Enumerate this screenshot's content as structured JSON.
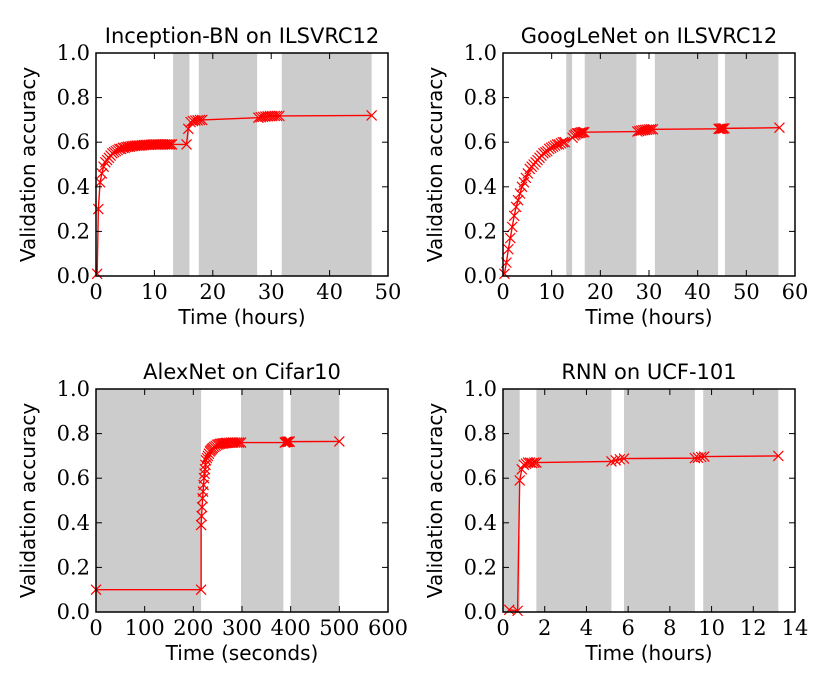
{
  "colors": {
    "line": "#ff0000",
    "shade": "#cccccc",
    "axis": "#000000",
    "background": "#ffffff"
  },
  "chart_data": [
    {
      "type": "line",
      "title": "Inception-BN on ILSVRC12",
      "xlabel": "Time (hours)",
      "ylabel": "Validation accuracy",
      "xlim": [
        0,
        50
      ],
      "ylim": [
        0,
        1.0
      ],
      "xticks": [
        "0",
        "10",
        "20",
        "30",
        "40",
        "50"
      ],
      "yticks": [
        "0.0",
        "0.2",
        "0.4",
        "0.6",
        "0.8",
        "1.0"
      ],
      "shaded_regions": [
        [
          13.2,
          16.0
        ],
        [
          17.6,
          27.6
        ],
        [
          31.8,
          47.2
        ]
      ],
      "series": [
        {
          "name": "validation accuracy",
          "x": [
            0.2,
            0.4,
            0.7,
            1.0,
            1.3,
            1.6,
            1.9,
            2.2,
            2.5,
            2.8,
            3.1,
            3.4,
            3.7,
            4.0,
            4.3,
            4.6,
            4.9,
            5.2,
            5.5,
            5.8,
            6.1,
            6.4,
            6.7,
            7.0,
            7.3,
            7.6,
            7.9,
            8.2,
            8.5,
            8.8,
            9.1,
            9.4,
            9.7,
            10.0,
            10.3,
            10.6,
            10.9,
            11.2,
            11.5,
            11.8,
            12.1,
            12.4,
            12.7,
            13.0,
            15.5,
            15.8,
            16.2,
            16.6,
            17.0,
            17.4,
            17.8,
            18.2,
            27.8,
            28.2,
            28.6,
            29.0,
            29.4,
            29.8,
            30.2,
            30.6,
            31.0,
            31.4,
            47.2
          ],
          "y": [
            0.01,
            0.3,
            0.42,
            0.46,
            0.49,
            0.51,
            0.52,
            0.53,
            0.54,
            0.55,
            0.555,
            0.56,
            0.565,
            0.57,
            0.57,
            0.575,
            0.575,
            0.578,
            0.58,
            0.58,
            0.582,
            0.583,
            0.584,
            0.585,
            0.585,
            0.585,
            0.586,
            0.587,
            0.588,
            0.588,
            0.588,
            0.589,
            0.59,
            0.59,
            0.59,
            0.59,
            0.59,
            0.59,
            0.59,
            0.59,
            0.59,
            0.59,
            0.59,
            0.59,
            0.59,
            0.66,
            0.69,
            0.695,
            0.697,
            0.698,
            0.7,
            0.7,
            0.71,
            0.712,
            0.714,
            0.715,
            0.716,
            0.717,
            0.717,
            0.718,
            0.718,
            0.718,
            0.72
          ]
        }
      ]
    },
    {
      "type": "line",
      "title": "GoogLeNet on ILSVRC12",
      "xlabel": "Time (hours)",
      "ylabel": "Validation accuracy",
      "xlim": [
        0,
        60
      ],
      "ylim": [
        0,
        1.0
      ],
      "xticks": [
        "0",
        "10",
        "20",
        "30",
        "40",
        "50",
        "60"
      ],
      "yticks": [
        "0.0",
        "0.2",
        "0.4",
        "0.6",
        "0.8",
        "1.0"
      ],
      "shaded_regions": [
        [
          13.0,
          14.2
        ],
        [
          16.8,
          27.4
        ],
        [
          31.2,
          44.2
        ],
        [
          45.6,
          56.6
        ]
      ],
      "series": [
        {
          "name": "validation accuracy",
          "x": [
            0.3,
            0.7,
            1.1,
            1.5,
            1.9,
            2.3,
            2.7,
            3.1,
            3.5,
            3.9,
            4.3,
            4.7,
            5.1,
            5.5,
            5.9,
            6.3,
            6.7,
            7.1,
            7.5,
            7.9,
            8.3,
            8.7,
            9.1,
            9.5,
            9.9,
            10.3,
            10.7,
            11.1,
            11.5,
            11.9,
            12.3,
            12.7,
            14.3,
            14.6,
            14.9,
            15.2,
            15.5,
            15.8,
            16.1,
            16.4,
            16.7,
            27.6,
            28.0,
            28.4,
            28.8,
            29.2,
            29.6,
            30.0,
            30.4,
            30.8,
            44.3,
            44.6,
            44.9,
            45.2,
            45.5,
            56.8
          ],
          "y": [
            0.01,
            0.06,
            0.12,
            0.17,
            0.22,
            0.27,
            0.31,
            0.34,
            0.37,
            0.4,
            0.42,
            0.44,
            0.46,
            0.48,
            0.49,
            0.5,
            0.51,
            0.52,
            0.53,
            0.54,
            0.55,
            0.555,
            0.56,
            0.57,
            0.575,
            0.58,
            0.585,
            0.59,
            0.59,
            0.595,
            0.6,
            0.6,
            0.62,
            0.63,
            0.635,
            0.64,
            0.64,
            0.642,
            0.644,
            0.645,
            0.645,
            0.648,
            0.65,
            0.652,
            0.654,
            0.655,
            0.656,
            0.657,
            0.658,
            0.658,
            0.66,
            0.66,
            0.661,
            0.661,
            0.662,
            0.665
          ]
        }
      ]
    },
    {
      "type": "line",
      "title": "AlexNet on Cifar10",
      "xlabel": "Time (seconds)",
      "ylabel": "Validation accuracy",
      "xlim": [
        0,
        600
      ],
      "ylim": [
        0,
        1.0
      ],
      "xticks": [
        "0",
        "100",
        "200",
        "300",
        "400",
        "500",
        "600"
      ],
      "yticks": [
        "0.0",
        "0.2",
        "0.4",
        "0.6",
        "0.8",
        "1.0"
      ],
      "shaded_regions": [
        [
          0,
          216
        ],
        [
          298,
          385
        ],
        [
          400,
          500
        ]
      ],
      "series": [
        {
          "name": "validation accuracy",
          "x": [
            0,
            216,
            216,
            217,
            218,
            219,
            220,
            221,
            222,
            223,
            224,
            225,
            226,
            228,
            230,
            232,
            234,
            236,
            238,
            240,
            243,
            246,
            249,
            252,
            255,
            258,
            261,
            264,
            267,
            270,
            274,
            278,
            282,
            286,
            290,
            294,
            298,
            388,
            390,
            392,
            394,
            396,
            398,
            500
          ],
          "y": [
            0.1,
            0.1,
            0.39,
            0.43,
            0.47,
            0.51,
            0.54,
            0.57,
            0.6,
            0.62,
            0.64,
            0.66,
            0.68,
            0.69,
            0.7,
            0.71,
            0.72,
            0.725,
            0.73,
            0.735,
            0.74,
            0.745,
            0.75,
            0.752,
            0.754,
            0.755,
            0.756,
            0.757,
            0.758,
            0.758,
            0.759,
            0.76,
            0.76,
            0.76,
            0.76,
            0.76,
            0.76,
            0.76,
            0.762,
            0.763,
            0.763,
            0.764,
            0.764,
            0.765
          ]
        }
      ]
    },
    {
      "type": "line",
      "title": "RNN on UCF-101",
      "xlabel": "Time (hours)",
      "ylabel": "Validation accuracy",
      "xlim": [
        0,
        14
      ],
      "ylim": [
        0,
        1.0
      ],
      "xticks": [
        "0",
        "2",
        "4",
        "6",
        "8",
        "10",
        "12",
        "14"
      ],
      "yticks": [
        "0.0",
        "0.2",
        "0.4",
        "0.6",
        "0.8",
        "1.0"
      ],
      "shaded_regions": [
        [
          0,
          0.8
        ],
        [
          1.6,
          5.2
        ],
        [
          5.8,
          9.2
        ],
        [
          9.6,
          13.2
        ]
      ],
      "series": [
        {
          "name": "validation accuracy",
          "x": [
            0.3,
            0.7,
            0.8,
            0.9,
            1.0,
            1.1,
            1.2,
            1.3,
            1.4,
            1.5,
            1.6,
            5.2,
            5.4,
            5.6,
            5.8,
            9.2,
            9.35,
            9.5,
            9.65,
            13.2
          ],
          "y": [
            0.01,
            0.005,
            0.59,
            0.64,
            0.66,
            0.665,
            0.67,
            0.67,
            0.668,
            0.67,
            0.67,
            0.675,
            0.68,
            0.685,
            0.688,
            0.69,
            0.692,
            0.695,
            0.697,
            0.7
          ]
        }
      ]
    }
  ]
}
